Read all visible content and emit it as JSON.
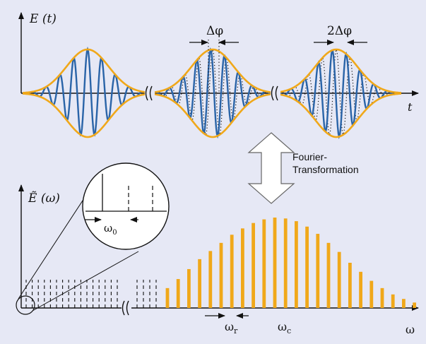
{
  "labels": {
    "e_t": "E (t)",
    "t_axis": "t",
    "delta_phi": "Δφ",
    "two_delta_phi": "2Δφ",
    "fourier_line1": "Fourier-",
    "fourier_line2": "Transformation",
    "e_omega": "Ẽ (ω)",
    "omega_0": "ω",
    "omega_0_sub": "0",
    "omega_r": "ω",
    "omega_r_sub": "r",
    "omega_c": "ω",
    "omega_c_sub": "c",
    "omega_axis": "ω"
  },
  "colors": {
    "background": "#e6e8f5",
    "envelope": "#f0a81a",
    "carrier": "#2a64a8",
    "axis": "#111111",
    "comb": "#f0a81a",
    "inset_bg": "#ffffff"
  },
  "pulse_train": {
    "pulse_count": 3,
    "carrier_envelope_phase_shift": [
      "0",
      "Δφ",
      "2Δφ"
    ]
  },
  "frequency_comb": {
    "relative_amplitudes": [
      0.22,
      0.32,
      0.43,
      0.54,
      0.63,
      0.72,
      0.81,
      0.88,
      0.94,
      0.98,
      1.0,
      0.99,
      0.96,
      0.9,
      0.82,
      0.72,
      0.62,
      0.5,
      0.4,
      0.3,
      0.22,
      0.15,
      0.1,
      0.06
    ],
    "dashed_lines_left": 19
  }
}
